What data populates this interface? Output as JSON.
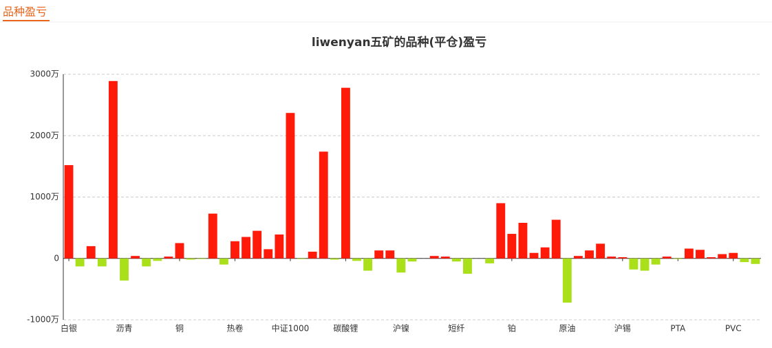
{
  "header": {
    "title": "品种盈亏"
  },
  "chart_data": {
    "type": "bar",
    "title": "liwenyan五矿的品种(平仓)盈亏",
    "categories": [
      "白银",
      null,
      null,
      null,
      null,
      "沥青",
      null,
      null,
      null,
      null,
      "铜",
      null,
      null,
      null,
      null,
      "热卷",
      null,
      null,
      null,
      null,
      "中证1000",
      null,
      null,
      null,
      null,
      "碳酸锂",
      null,
      null,
      null,
      null,
      "沪镍",
      null,
      null,
      null,
      null,
      "短纤",
      null,
      null,
      null,
      null,
      "铂",
      null,
      null,
      null,
      null,
      "原油",
      null,
      null,
      null,
      null,
      "沪锡",
      null,
      null,
      null,
      null,
      "PTA",
      null,
      null,
      null,
      null,
      "PVC",
      null,
      null
    ],
    "values": [
      1520,
      -130,
      200,
      -130,
      2890,
      -360,
      40,
      -130,
      -40,
      30,
      250,
      -20,
      -10,
      730,
      -100,
      280,
      350,
      450,
      150,
      390,
      2370,
      -10,
      110,
      1740,
      -20,
      2780,
      -40,
      -200,
      130,
      130,
      -230,
      -50,
      0,
      40,
      30,
      -50,
      -250,
      0,
      -80,
      900,
      400,
      580,
      90,
      180,
      630,
      -720,
      40,
      130,
      240,
      30,
      20,
      -180,
      -200,
      -100,
      30,
      -10,
      160,
      140,
      20,
      70,
      90,
      -60,
      -90
    ],
    "positive_color": "#ff1a0a",
    "negative_color": "#a9e01a",
    "ylim": [
      -1000,
      3000
    ],
    "yticks": [
      {
        "value": -1000,
        "label": "-1000万"
      },
      {
        "value": 0,
        "label": "0"
      },
      {
        "value": 1000,
        "label": "1000万"
      },
      {
        "value": 2000,
        "label": "2000万"
      },
      {
        "value": 3000,
        "label": "3000万"
      }
    ],
    "grid": true
  }
}
